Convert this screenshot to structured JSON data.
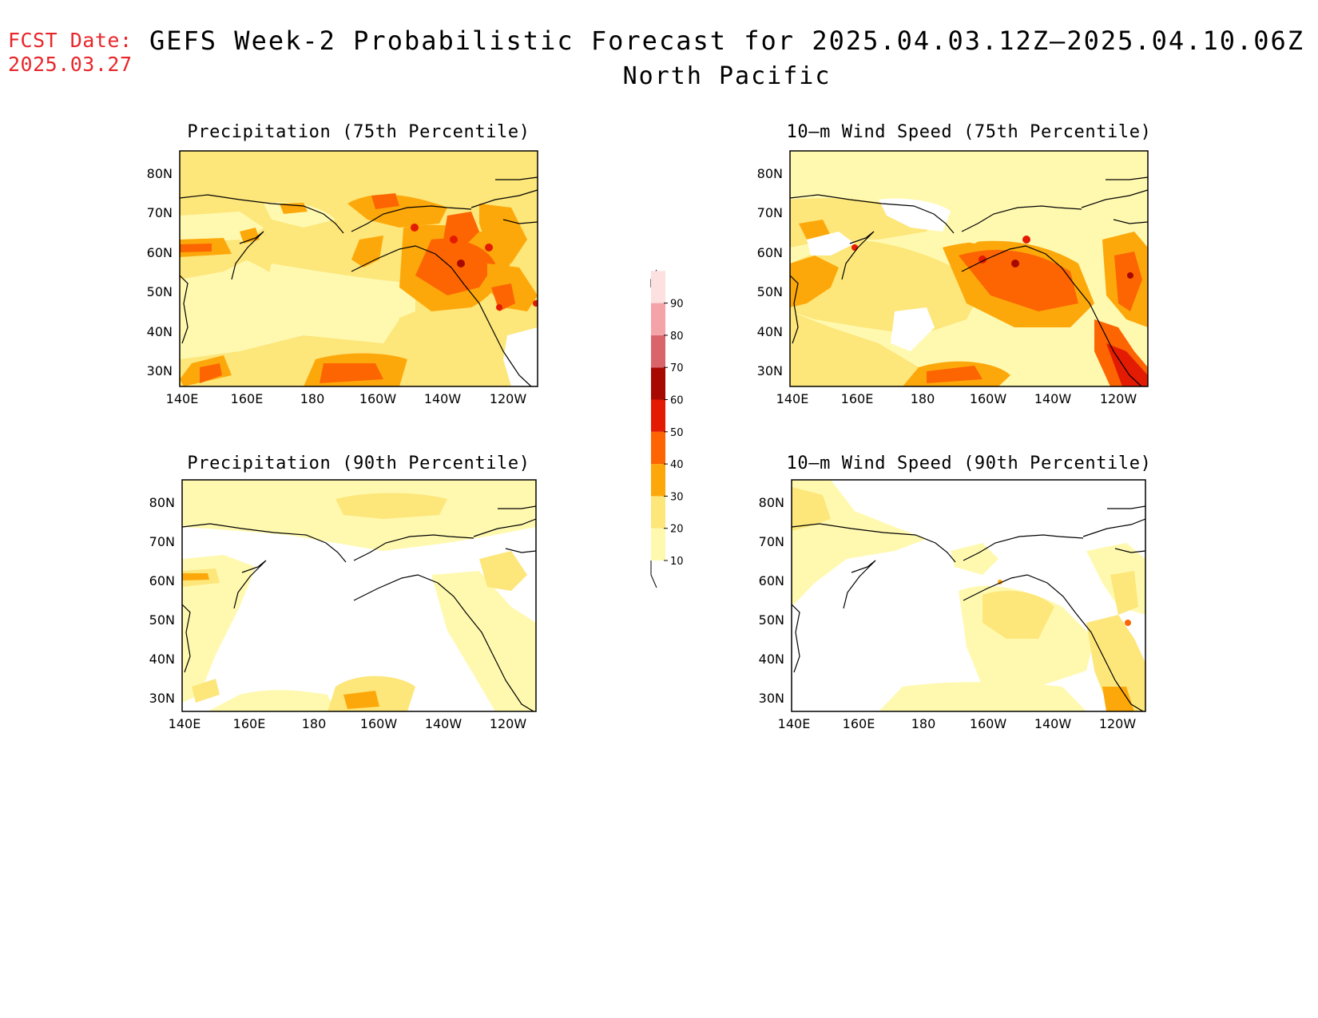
{
  "forecast": {
    "label": "FCST Date:",
    "date": "2025.03.27"
  },
  "title": {
    "line1": "GEFS Week-2 Probabilistic Forecast for 2025.04.03.12Z–2025.04.10.06Z",
    "line2": "North Pacific"
  },
  "axes": {
    "lat_labels": [
      "80N",
      "70N",
      "60N",
      "50N",
      "40N",
      "30N"
    ],
    "lon_labels": [
      "140E",
      "160E",
      "180",
      "160W",
      "140W",
      "120W"
    ]
  },
  "panels": [
    {
      "id": "precip75",
      "title": "Precipitation (75th Percentile)"
    },
    {
      "id": "wind75",
      "title": "10–m Wind Speed (75th Percentile)"
    },
    {
      "id": "precip90",
      "title": "Precipitation (90th Percentile)"
    },
    {
      "id": "wind90",
      "title": "10–m Wind Speed (90th Percentile)"
    }
  ],
  "colorbar": {
    "levels": [
      "10",
      "20",
      "30",
      "40",
      "50",
      "60",
      "70",
      "80",
      "90"
    ],
    "colors": [
      "#fff9b0",
      "#fde67a",
      "#fda80a",
      "#fc6502",
      "#e31b02",
      "#a70800",
      "#d9656b",
      "#f4a3a8",
      "#fde0e0"
    ]
  },
  "palette": {
    "bg_low": "#fff9b0",
    "bg_mid": "#fde67a",
    "orange": "#fda80a",
    "dark_orange": "#fc6502",
    "red": "#e31b02",
    "dark_red": "#a70800",
    "title_red": "#e8262a"
  }
}
